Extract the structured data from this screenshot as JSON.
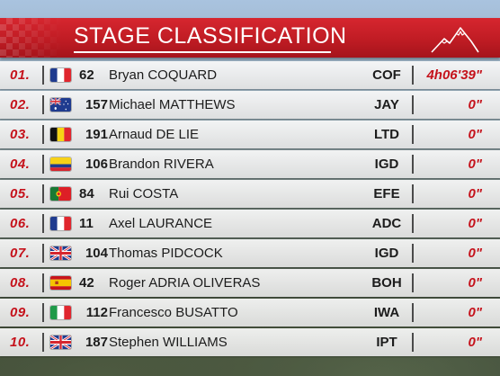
{
  "header": {
    "title": "STAGE CLASSIFICATION",
    "icon": "mountain-peaks-icon",
    "background_color": "#c01c24"
  },
  "colors": {
    "accent_red": "#c5121b",
    "row_background": "#ececec",
    "text_dark": "#1c1c1c"
  },
  "rows": [
    {
      "position": "01.",
      "flag": "france-flag-icon",
      "bib": "62",
      "rider": "Bryan COQUARD",
      "team": "COF",
      "time": "4h06'39\""
    },
    {
      "position": "02.",
      "flag": "australia-flag-icon",
      "bib": "157",
      "rider": "Michael MATTHEWS",
      "team": "JAY",
      "time": "0\""
    },
    {
      "position": "03.",
      "flag": "belgium-flag-icon",
      "bib": "191",
      "rider": "Arnaud DE LIE",
      "team": "LTD",
      "time": "0\""
    },
    {
      "position": "04.",
      "flag": "colombia-flag-icon",
      "bib": "106",
      "rider": "Brandon RIVERA",
      "team": "IGD",
      "time": "0\""
    },
    {
      "position": "05.",
      "flag": "portugal-flag-icon",
      "bib": "84",
      "rider": "Rui COSTA",
      "team": "EFE",
      "time": "0\""
    },
    {
      "position": "06.",
      "flag": "france-flag-icon",
      "bib": "11",
      "rider": "Axel LAURANCE",
      "team": "ADC",
      "time": "0\""
    },
    {
      "position": "07.",
      "flag": "united-kingdom-flag-icon",
      "bib": "104",
      "rider": "Thomas PIDCOCK",
      "team": "IGD",
      "time": "0\""
    },
    {
      "position": "08.",
      "flag": "spain-flag-icon",
      "bib": "42",
      "rider": "Roger ADRIA OLIVERAS",
      "team": "BOH",
      "time": "0\""
    },
    {
      "position": "09.",
      "flag": "italy-flag-icon",
      "bib": "112",
      "rider": "Francesco BUSATTO",
      "team": "IWA",
      "time": "0\""
    },
    {
      "position": "10.",
      "flag": "united-kingdom-flag-icon",
      "bib": "187",
      "rider": "Stephen WILLIAMS",
      "team": "IPT",
      "time": "0\""
    }
  ]
}
